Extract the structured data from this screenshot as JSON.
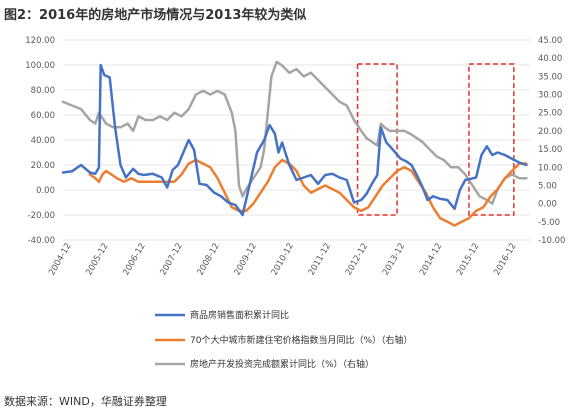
{
  "title": "图2：2016年的房地产市场情况与2013年较为类似",
  "source_note": "数据来源：WIND，华融证券整理",
  "colors": {
    "sales_area": "#4472C4",
    "price_index": "#ED7D31",
    "investment": "#A5A5A5",
    "highlight_box": "#E03030",
    "grid": "#E6E6E6",
    "axis_text": "#595959"
  },
  "chart_data": {
    "type": "line",
    "title": "图2：2016年的房地产市场情况与2013年较为类似",
    "x_range": [
      2004.0,
      2017.0
    ],
    "x_tick_labels": [
      "2004-12",
      "2005-12",
      "2006-12",
      "2007-12",
      "2008-12",
      "2009-12",
      "2010-12",
      "2011-12",
      "2012-12",
      "2013-12",
      "2014-12",
      "2015-12",
      "2016-12"
    ],
    "left_axis": {
      "ylim": [
        -40,
        120
      ],
      "ticks": [
        "120.00",
        "100.00",
        "80.00",
        "60.00",
        "40.00",
        "20.00",
        "0.00",
        "-20.00",
        "-40.00"
      ]
    },
    "right_axis": {
      "ylim": [
        -10,
        45
      ],
      "ticks": [
        "45.00",
        "40.00",
        "35.00",
        "30.00",
        "25.00",
        "20.00",
        "15.00",
        "10.00",
        "5.00",
        "0.00",
        "-5.00",
        "-10.00"
      ]
    },
    "grid": true,
    "legend_position": "bottom",
    "highlight_regions": [
      {
        "x_start": 2012.2,
        "x_end": 2013.3
      },
      {
        "x_start": 2015.3,
        "x_end": 2016.55
      }
    ],
    "series": [
      {
        "name": "商品房销售面积累计同比",
        "axis": "left",
        "x": [
          2004.0,
          2004.25,
          2004.5,
          2004.75,
          2004.9,
          2005.0,
          2005.05,
          2005.15,
          2005.3,
          2005.45,
          2005.6,
          2005.75,
          2005.95,
          2006.1,
          2006.25,
          2006.5,
          2006.75,
          2006.9,
          2007.05,
          2007.2,
          2007.35,
          2007.5,
          2007.65,
          2007.8,
          2008.0,
          2008.2,
          2008.4,
          2008.6,
          2008.8,
          2009.0,
          2009.2,
          2009.4,
          2009.6,
          2009.75,
          2009.9,
          2010.0,
          2010.1,
          2010.3,
          2010.5,
          2010.7,
          2010.9,
          2011.1,
          2011.3,
          2011.5,
          2011.7,
          2011.9,
          2012.1,
          2012.3,
          2012.45,
          2012.6,
          2012.75,
          2012.85,
          2012.95,
          2013.0,
          2013.1,
          2013.25,
          2013.4,
          2013.55,
          2013.7,
          2013.85,
          2014.0,
          2014.15,
          2014.3,
          2014.5,
          2014.7,
          2014.9,
          2015.05,
          2015.2,
          2015.35,
          2015.5,
          2015.65,
          2015.8,
          2015.95,
          2016.1,
          2016.3,
          2016.5,
          2016.7,
          2016.9
        ],
        "values": [
          14,
          15,
          20,
          14,
          13,
          18,
          100,
          92,
          90,
          50,
          20,
          10,
          17,
          13,
          12,
          13,
          10,
          2,
          16,
          20,
          30,
          40,
          32,
          5,
          4,
          -2,
          -5,
          -10,
          -12,
          -20,
          5,
          30,
          40,
          52,
          45,
          30,
          38,
          20,
          8,
          10,
          12,
          5,
          12,
          13,
          10,
          8,
          -10,
          -8,
          -3,
          5,
          12,
          50,
          42,
          38,
          35,
          30,
          25,
          23,
          20,
          12,
          3,
          -8,
          -5,
          -7,
          -8,
          -15,
          0,
          8,
          9,
          10,
          28,
          35,
          28,
          30,
          28,
          25,
          22,
          20
        ]
      },
      {
        "name": "70个大中城市新建住宅价格指数当月同比（%）（右轴）",
        "axis": "right",
        "x": [
          2004.75,
          2004.9,
          2005.0,
          2005.1,
          2005.2,
          2005.35,
          2005.5,
          2005.7,
          2005.9,
          2006.1,
          2006.3,
          2006.5,
          2006.7,
          2006.9,
          2007.1,
          2007.3,
          2007.5,
          2007.7,
          2007.9,
          2008.1,
          2008.3,
          2008.5,
          2008.7,
          2008.9,
          2009.0,
          2009.1,
          2009.3,
          2009.5,
          2009.7,
          2009.9,
          2010.1,
          2010.3,
          2010.5,
          2010.7,
          2010.9,
          2011.1,
          2011.3,
          2011.5,
          2011.7,
          2011.9,
          2012.1,
          2012.3,
          2012.5,
          2012.7,
          2012.9,
          2013.1,
          2013.3,
          2013.5,
          2013.7,
          2013.9,
          2014.1,
          2014.3,
          2014.5,
          2014.7,
          2014.9,
          2015.1,
          2015.3,
          2015.5,
          2015.7,
          2015.9,
          2016.1,
          2016.3,
          2016.5,
          2016.7,
          2016.9
        ],
        "values": [
          8,
          7,
          6,
          8,
          9,
          8,
          7,
          6,
          7,
          6,
          6,
          6,
          6,
          6,
          6,
          8,
          11,
          12,
          11,
          10,
          7,
          3,
          -1,
          -2,
          -2,
          -2,
          0,
          3,
          6,
          10,
          12,
          11,
          9,
          5,
          3,
          4,
          5,
          4,
          3,
          1,
          -1,
          -2,
          -1,
          2,
          5,
          7,
          9,
          10,
          9,
          6,
          3,
          -1,
          -4,
          -5,
          -6,
          -5,
          -4,
          -2,
          -1,
          2,
          4,
          7,
          9,
          11,
          11
        ]
      },
      {
        "name": "房地产开发投资完成额累计同比（%）（右轴）",
        "axis": "right",
        "x": [
          2004.0,
          2004.25,
          2004.5,
          2004.75,
          2004.9,
          2005.0,
          2005.2,
          2005.4,
          2005.6,
          2005.8,
          2005.95,
          2006.1,
          2006.3,
          2006.5,
          2006.7,
          2006.9,
          2007.1,
          2007.3,
          2007.5,
          2007.7,
          2007.9,
          2008.1,
          2008.3,
          2008.5,
          2008.7,
          2008.8,
          2008.9,
          2009.0,
          2009.1,
          2009.3,
          2009.5,
          2009.6,
          2009.7,
          2009.8,
          2009.95,
          2010.1,
          2010.3,
          2010.5,
          2010.7,
          2010.9,
          2011.1,
          2011.3,
          2011.5,
          2011.7,
          2011.9,
          2012.1,
          2012.3,
          2012.45,
          2012.6,
          2012.75,
          2012.85,
          2012.95,
          2013.1,
          2013.3,
          2013.5,
          2013.7,
          2013.85,
          2014.0,
          2014.2,
          2014.4,
          2014.6,
          2014.8,
          2015.0,
          2015.2,
          2015.4,
          2015.6,
          2015.8,
          2015.95,
          2016.1,
          2016.3,
          2016.5,
          2016.7,
          2016.9
        ],
        "values": [
          28,
          27,
          26,
          23,
          22,
          25,
          22,
          21,
          21,
          22,
          20,
          24,
          23,
          23,
          24,
          23,
          25,
          24,
          26,
          30,
          31,
          30,
          31,
          30,
          25,
          20,
          5,
          2,
          4,
          7,
          10,
          15,
          25,
          35,
          39,
          38,
          36,
          37,
          35,
          36,
          34,
          32,
          30,
          28,
          27,
          23,
          20,
          18,
          17,
          16,
          22,
          21,
          20,
          20,
          20,
          19,
          18,
          17,
          15,
          13,
          12,
          10,
          10,
          8,
          5,
          2,
          1,
          0,
          4,
          7,
          8,
          7,
          7
        ]
      }
    ]
  }
}
